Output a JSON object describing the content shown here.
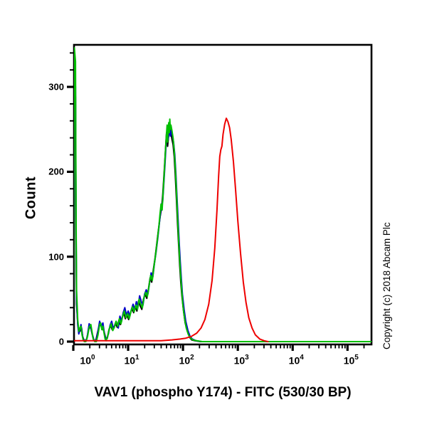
{
  "figure": {
    "copyright": "Copyright (c) 2018 Abcam Plc",
    "background_color": "#ffffff",
    "axis_color": "#000000",
    "y_axis": {
      "label": "Count",
      "major_ticks": [
        {
          "value": 0,
          "label": "0"
        },
        {
          "value": 100,
          "label": "100"
        },
        {
          "value": 200,
          "label": "200"
        },
        {
          "value": 300,
          "label": "300"
        }
      ],
      "minor_step": 20,
      "min": 0,
      "max": 350
    },
    "x_axis": {
      "label": "VAV1 (phospho Y174) - FITC (530/30 BP)",
      "scale": "log10",
      "tick_base": "10",
      "decade_exponents": [
        "0",
        "1",
        "2",
        "3",
        "4",
        "5"
      ],
      "log_min": 0,
      "log_max": 5.45
    }
  },
  "chart_data": {
    "type": "line",
    "subtype": "flow-cytometry-histogram-overlay",
    "title": "",
    "xlabel": "VAV1 (phospho Y174) - FITC (530/30 BP)",
    "ylabel": "Count",
    "x_scale": "log10",
    "xlim_log10": [
      0,
      5.45
    ],
    "ylim": [
      0,
      350
    ],
    "grid": false,
    "legend": "none",
    "series": [
      {
        "name": "black_curve",
        "color": "#000000",
        "peak": {
          "x_log10": 1.76,
          "count": 252
        },
        "points": [
          [
            0.0,
            2
          ],
          [
            0.02,
            312
          ],
          [
            0.04,
            288
          ],
          [
            0.05,
            118
          ],
          [
            0.06,
            44
          ],
          [
            0.08,
            22
          ],
          [
            0.1,
            14
          ],
          [
            0.12,
            12
          ],
          [
            0.15,
            16
          ],
          [
            0.17,
            6
          ],
          [
            0.2,
            1
          ],
          [
            0.24,
            2
          ],
          [
            0.28,
            14
          ],
          [
            0.31,
            19
          ],
          [
            0.34,
            10
          ],
          [
            0.37,
            2
          ],
          [
            0.41,
            1
          ],
          [
            0.44,
            10
          ],
          [
            0.47,
            18
          ],
          [
            0.5,
            20
          ],
          [
            0.53,
            16
          ],
          [
            0.56,
            12
          ],
          [
            0.59,
            4
          ],
          [
            0.62,
            4
          ],
          [
            0.65,
            14
          ],
          [
            0.68,
            19
          ],
          [
            0.71,
            14
          ],
          [
            0.74,
            16
          ],
          [
            0.77,
            22
          ],
          [
            0.8,
            17
          ],
          [
            0.83,
            25
          ],
          [
            0.86,
            20
          ],
          [
            0.89,
            28
          ],
          [
            0.92,
            34
          ],
          [
            0.95,
            27
          ],
          [
            0.98,
            31
          ],
          [
            1.01,
            26
          ],
          [
            1.04,
            33
          ],
          [
            1.07,
            39
          ],
          [
            1.1,
            34
          ],
          [
            1.13,
            41
          ],
          [
            1.16,
            36
          ],
          [
            1.19,
            48
          ],
          [
            1.22,
            42
          ],
          [
            1.25,
            38
          ],
          [
            1.28,
            50
          ],
          [
            1.31,
            56
          ],
          [
            1.34,
            51
          ],
          [
            1.37,
            62
          ],
          [
            1.4,
            75
          ],
          [
            1.43,
            70
          ],
          [
            1.46,
            85
          ],
          [
            1.49,
            98
          ],
          [
            1.52,
            114
          ],
          [
            1.55,
            130
          ],
          [
            1.58,
            146
          ],
          [
            1.61,
            158
          ],
          [
            1.63,
            172
          ],
          [
            1.65,
            192
          ],
          [
            1.67,
            214
          ],
          [
            1.69,
            236
          ],
          [
            1.7,
            246
          ],
          [
            1.72,
            230
          ],
          [
            1.74,
            244
          ],
          [
            1.76,
            252
          ],
          [
            1.78,
            246
          ],
          [
            1.8,
            238
          ],
          [
            1.82,
            232
          ],
          [
            1.84,
            218
          ],
          [
            1.86,
            196
          ],
          [
            1.88,
            168
          ],
          [
            1.9,
            140
          ],
          [
            1.92,
            114
          ],
          [
            1.94,
            90
          ],
          [
            1.96,
            70
          ],
          [
            1.98,
            54
          ],
          [
            2.01,
            36
          ],
          [
            2.04,
            22
          ],
          [
            2.08,
            12
          ],
          [
            2.12,
            5
          ],
          [
            2.16,
            2
          ],
          [
            2.22,
            1
          ],
          [
            2.32,
            0
          ],
          [
            5.45,
            0
          ]
        ]
      },
      {
        "name": "blue_curve",
        "color": "#0000c8",
        "peak": {
          "x_log10": 1.75,
          "count": 252
        },
        "points": [
          [
            0.0,
            2
          ],
          [
            0.02,
            322
          ],
          [
            0.04,
            300
          ],
          [
            0.05,
            130
          ],
          [
            0.06,
            50
          ],
          [
            0.08,
            20
          ],
          [
            0.1,
            9
          ],
          [
            0.12,
            14
          ],
          [
            0.14,
            20
          ],
          [
            0.16,
            10
          ],
          [
            0.18,
            3
          ],
          [
            0.21,
            0
          ],
          [
            0.25,
            4
          ],
          [
            0.29,
            21
          ],
          [
            0.32,
            16
          ],
          [
            0.35,
            8
          ],
          [
            0.38,
            1
          ],
          [
            0.42,
            2
          ],
          [
            0.45,
            12
          ],
          [
            0.48,
            24
          ],
          [
            0.51,
            18
          ],
          [
            0.54,
            22
          ],
          [
            0.57,
            8
          ],
          [
            0.6,
            2
          ],
          [
            0.64,
            9
          ],
          [
            0.67,
            19
          ],
          [
            0.7,
            24
          ],
          [
            0.73,
            15
          ],
          [
            0.76,
            20
          ],
          [
            0.79,
            22
          ],
          [
            0.82,
            16
          ],
          [
            0.85,
            30
          ],
          [
            0.88,
            24
          ],
          [
            0.91,
            34
          ],
          [
            0.94,
            40
          ],
          [
            0.97,
            31
          ],
          [
            1.0,
            36
          ],
          [
            1.03,
            30
          ],
          [
            1.06,
            38
          ],
          [
            1.09,
            44
          ],
          [
            1.12,
            38
          ],
          [
            1.15,
            47
          ],
          [
            1.18,
            41
          ],
          [
            1.21,
            54
          ],
          [
            1.24,
            47
          ],
          [
            1.27,
            43
          ],
          [
            1.3,
            56
          ],
          [
            1.33,
            61
          ],
          [
            1.36,
            56
          ],
          [
            1.39,
            69
          ],
          [
            1.42,
            81
          ],
          [
            1.45,
            76
          ],
          [
            1.48,
            92
          ],
          [
            1.51,
            106
          ],
          [
            1.54,
            122
          ],
          [
            1.57,
            140
          ],
          [
            1.6,
            158
          ],
          [
            1.63,
            165
          ],
          [
            1.65,
            185
          ],
          [
            1.67,
            207
          ],
          [
            1.69,
            230
          ],
          [
            1.71,
            248
          ],
          [
            1.73,
            238
          ],
          [
            1.75,
            252
          ],
          [
            1.77,
            242
          ],
          [
            1.79,
            250
          ],
          [
            1.81,
            242
          ],
          [
            1.83,
            234
          ],
          [
            1.85,
            220
          ],
          [
            1.87,
            198
          ],
          [
            1.89,
            172
          ],
          [
            1.91,
            144
          ],
          [
            1.93,
            118
          ],
          [
            1.95,
            94
          ],
          [
            1.97,
            74
          ],
          [
            1.99,
            56
          ],
          [
            2.02,
            38
          ],
          [
            2.05,
            24
          ],
          [
            2.09,
            13
          ],
          [
            2.13,
            6
          ],
          [
            2.17,
            3
          ],
          [
            2.24,
            1
          ],
          [
            2.34,
            0
          ],
          [
            5.45,
            0
          ]
        ]
      },
      {
        "name": "green_curve",
        "color": "#00bf00",
        "peak": {
          "x_log10": 1.76,
          "count": 262
        },
        "points": [
          [
            0.0,
            2
          ],
          [
            0.02,
            346
          ],
          [
            0.04,
            330
          ],
          [
            0.05,
            150
          ],
          [
            0.06,
            60
          ],
          [
            0.08,
            26
          ],
          [
            0.1,
            12
          ],
          [
            0.12,
            16
          ],
          [
            0.14,
            18
          ],
          [
            0.16,
            8
          ],
          [
            0.18,
            2
          ],
          [
            0.2,
            0
          ],
          [
            0.23,
            0
          ],
          [
            0.26,
            6
          ],
          [
            0.29,
            17
          ],
          [
            0.32,
            20
          ],
          [
            0.34,
            12
          ],
          [
            0.36,
            4
          ],
          [
            0.39,
            0
          ],
          [
            0.42,
            0
          ],
          [
            0.45,
            8
          ],
          [
            0.48,
            20
          ],
          [
            0.5,
            22
          ],
          [
            0.52,
            14
          ],
          [
            0.54,
            18
          ],
          [
            0.56,
            10
          ],
          [
            0.58,
            3
          ],
          [
            0.6,
            1
          ],
          [
            0.63,
            7
          ],
          [
            0.66,
            16
          ],
          [
            0.69,
            21
          ],
          [
            0.72,
            13
          ],
          [
            0.75,
            17
          ],
          [
            0.78,
            24
          ],
          [
            0.81,
            18
          ],
          [
            0.84,
            27
          ],
          [
            0.87,
            21
          ],
          [
            0.9,
            30
          ],
          [
            0.93,
            36
          ],
          [
            0.96,
            28
          ],
          [
            0.99,
            33
          ],
          [
            1.02,
            27
          ],
          [
            1.05,
            35
          ],
          [
            1.08,
            41
          ],
          [
            1.11,
            35
          ],
          [
            1.14,
            43
          ],
          [
            1.17,
            38
          ],
          [
            1.2,
            50
          ],
          [
            1.23,
            44
          ],
          [
            1.26,
            40
          ],
          [
            1.29,
            52
          ],
          [
            1.32,
            58
          ],
          [
            1.35,
            53
          ],
          [
            1.38,
            65
          ],
          [
            1.41,
            78
          ],
          [
            1.44,
            72
          ],
          [
            1.47,
            88
          ],
          [
            1.5,
            102
          ],
          [
            1.53,
            118
          ],
          [
            1.56,
            135
          ],
          [
            1.58,
            150
          ],
          [
            1.6,
            162
          ],
          [
            1.62,
            155
          ],
          [
            1.64,
            178
          ],
          [
            1.66,
            200
          ],
          [
            1.68,
            225
          ],
          [
            1.7,
            245
          ],
          [
            1.71,
            255
          ],
          [
            1.72,
            235
          ],
          [
            1.73,
            248
          ],
          [
            1.74,
            258
          ],
          [
            1.75,
            246
          ],
          [
            1.76,
            262
          ],
          [
            1.77,
            250
          ],
          [
            1.78,
            255
          ],
          [
            1.8,
            248
          ],
          [
            1.82,
            240
          ],
          [
            1.84,
            225
          ],
          [
            1.86,
            205
          ],
          [
            1.88,
            178
          ],
          [
            1.9,
            148
          ],
          [
            1.92,
            120
          ],
          [
            1.94,
            96
          ],
          [
            1.96,
            76
          ],
          [
            1.98,
            58
          ],
          [
            2.0,
            42
          ],
          [
            2.03,
            27
          ],
          [
            2.06,
            16
          ],
          [
            2.1,
            8
          ],
          [
            2.14,
            4
          ],
          [
            2.18,
            2
          ],
          [
            2.25,
            1
          ],
          [
            2.35,
            0
          ],
          [
            3.0,
            0
          ],
          [
            4.0,
            0
          ],
          [
            5.0,
            0
          ],
          [
            5.45,
            0
          ]
        ]
      },
      {
        "name": "red_curve",
        "color": "#ee0000",
        "peak": {
          "x_log10": 2.79,
          "count": 263
        },
        "points": [
          [
            0.0,
            1
          ],
          [
            0.6,
            1
          ],
          [
            1.2,
            1
          ],
          [
            1.6,
            1
          ],
          [
            1.8,
            2
          ],
          [
            1.95,
            3
          ],
          [
            2.05,
            4
          ],
          [
            2.15,
            6
          ],
          [
            2.25,
            10
          ],
          [
            2.33,
            16
          ],
          [
            2.4,
            26
          ],
          [
            2.47,
            44
          ],
          [
            2.53,
            72
          ],
          [
            2.58,
            110
          ],
          [
            2.62,
            155
          ],
          [
            2.65,
            195
          ],
          [
            2.67,
            218
          ],
          [
            2.69,
            226
          ],
          [
            2.71,
            230
          ],
          [
            2.73,
            244
          ],
          [
            2.76,
            256
          ],
          [
            2.79,
            263
          ],
          [
            2.82,
            259
          ],
          [
            2.85,
            252
          ],
          [
            2.88,
            238
          ],
          [
            2.92,
            212
          ],
          [
            2.96,
            178
          ],
          [
            3.0,
            142
          ],
          [
            3.05,
            104
          ],
          [
            3.1,
            70
          ],
          [
            3.15,
            46
          ],
          [
            3.2,
            28
          ],
          [
            3.26,
            16
          ],
          [
            3.32,
            8
          ],
          [
            3.4,
            3
          ],
          [
            3.48,
            1
          ],
          [
            3.55,
            0
          ]
        ]
      }
    ]
  }
}
